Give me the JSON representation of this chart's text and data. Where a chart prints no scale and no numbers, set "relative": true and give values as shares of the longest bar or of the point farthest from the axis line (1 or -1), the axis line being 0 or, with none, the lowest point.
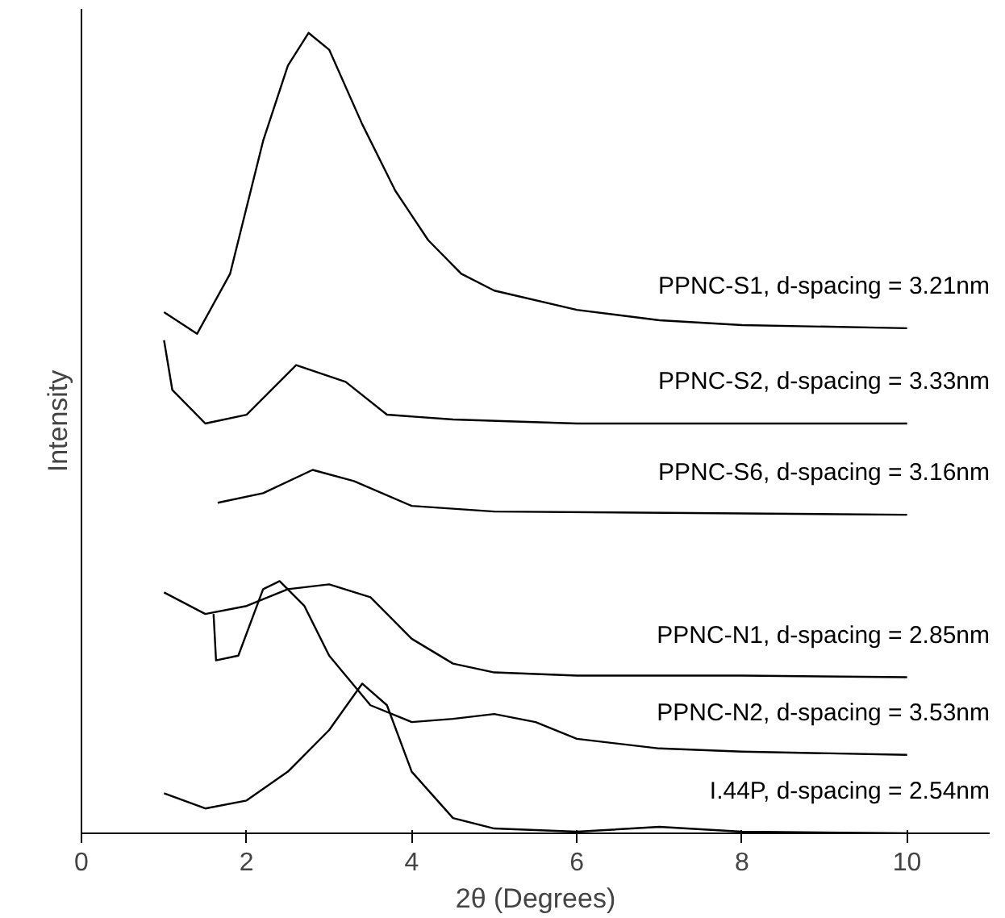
{
  "chart_data": {
    "type": "line",
    "relative": true,
    "xlabel": "2θ (Degrees)",
    "ylabel": "Intensity",
    "xlim": [
      0,
      11
    ],
    "xticks": [
      0,
      2,
      4,
      6,
      8,
      10
    ],
    "grid": false,
    "series": [
      {
        "name": "PPNC-S1, d-spacing = 3.21nm",
        "color": "#000000",
        "x": [
          1,
          1.4,
          1.8,
          2.0,
          2.2,
          2.5,
          2.75,
          3.0,
          3.4,
          3.8,
          4.2,
          4.6,
          5,
          6,
          7,
          8,
          10
        ],
        "values": [
          0.651,
          0.624,
          0.699,
          0.782,
          0.865,
          0.959,
          1.0,
          0.979,
          0.886,
          0.803,
          0.741,
          0.699,
          0.678,
          0.654,
          0.641,
          0.635,
          0.631
        ]
      },
      {
        "name": "PPNC-S2, d-spacing = 3.33nm",
        "color": "#000000",
        "x": [
          1,
          1.1,
          1.5,
          2,
          2.6,
          3.2,
          3.7,
          4.5,
          6,
          10
        ],
        "values": [
          0.616,
          0.554,
          0.512,
          0.523,
          0.585,
          0.564,
          0.523,
          0.517,
          0.512,
          0.512
        ]
      },
      {
        "name": "PPNC-S6, d-spacing = 3.16nm",
        "color": "#000000",
        "x": [
          1.65,
          2.2,
          2.8,
          3.3,
          4,
          5,
          10
        ],
        "values": [
          0.413,
          0.425,
          0.454,
          0.44,
          0.409,
          0.402,
          0.398
        ]
      },
      {
        "name": "PPNC-N1, d-spacing = 2.85nm",
        "color": "#000000",
        "x": [
          1,
          1.5,
          2,
          2.5,
          3,
          3.5,
          4,
          4.5,
          5,
          6,
          8,
          10
        ],
        "values": [
          0.301,
          0.274,
          0.284,
          0.305,
          0.311,
          0.295,
          0.243,
          0.212,
          0.201,
          0.197,
          0.197,
          0.195
        ]
      },
      {
        "name": "PPNC-N2, d-spacing = 3.53nm",
        "color": "#000000",
        "x": [
          1.6,
          1.63,
          1.9,
          2.2,
          2.4,
          2.7,
          3,
          3.5,
          4,
          4.5,
          5,
          5.5,
          6,
          7,
          8,
          10
        ],
        "values": [
          0.274,
          0.216,
          0.222,
          0.305,
          0.315,
          0.284,
          0.222,
          0.16,
          0.139,
          0.143,
          0.149,
          0.139,
          0.118,
          0.106,
          0.102,
          0.098
        ]
      },
      {
        "name": "I.44P, d-spacing = 2.54nm",
        "color": "#000000",
        "x": [
          1,
          1.5,
          2,
          2.5,
          3,
          3.4,
          3.7,
          4,
          4.5,
          5,
          6,
          7,
          8,
          10
        ],
        "values": [
          0.05,
          0.031,
          0.041,
          0.077,
          0.129,
          0.187,
          0.16,
          0.077,
          0.019,
          0.006,
          0.002,
          0.008,
          0.002,
          0
        ]
      }
    ]
  }
}
